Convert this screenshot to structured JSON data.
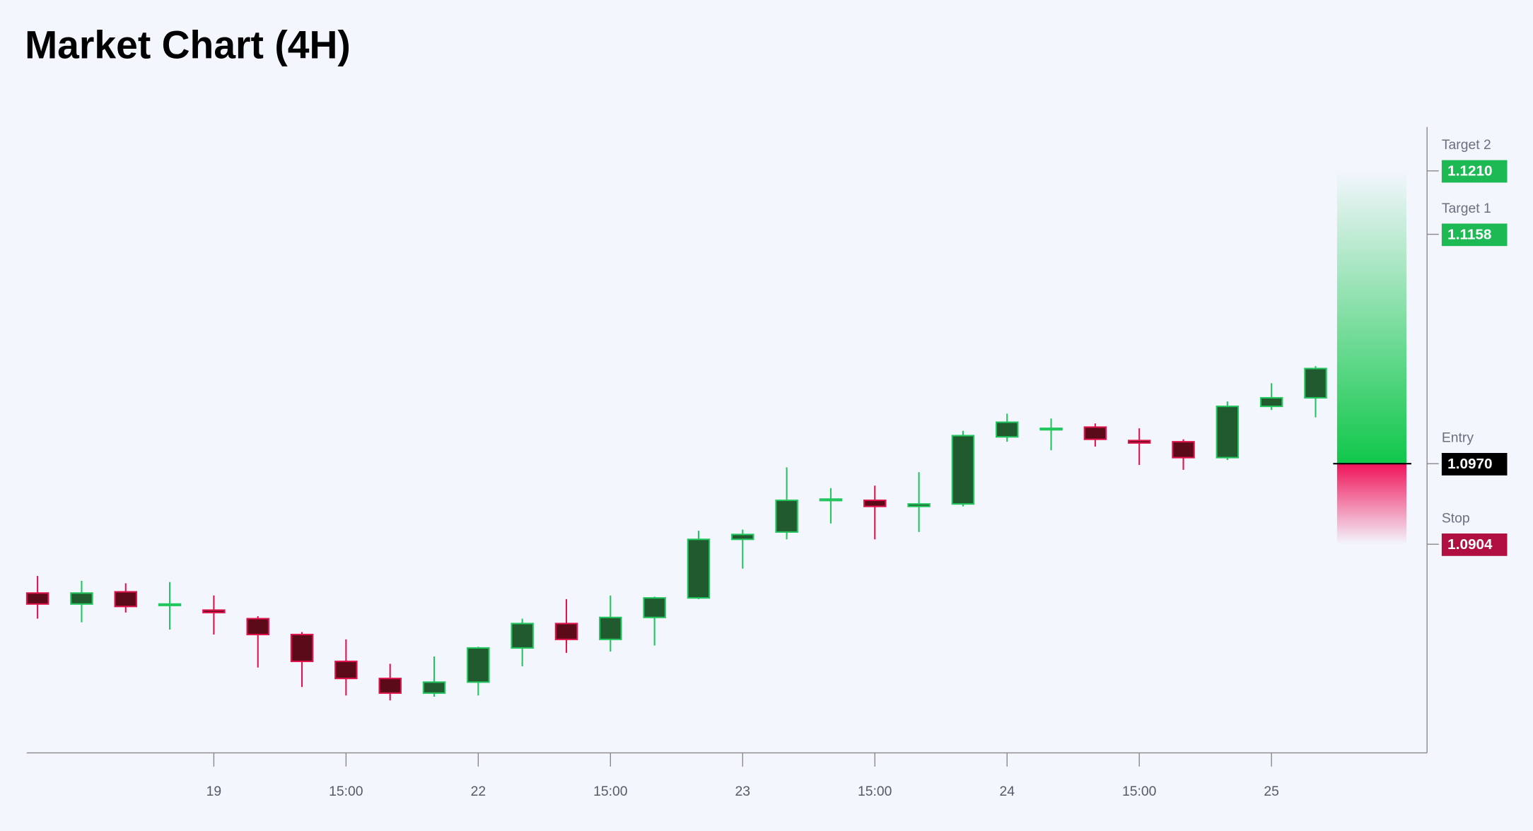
{
  "chart_data": {
    "type": "candlestick",
    "title": "Market Chart (4H)",
    "categories": [
      null,
      null,
      null,
      null,
      "19",
      null,
      null,
      "15:00",
      null,
      null,
      "22",
      null,
      null,
      "15:00",
      null,
      null,
      "23",
      null,
      null,
      "15:00",
      null,
      null,
      "24",
      null,
      null,
      "15:00",
      null,
      null,
      "25",
      null
    ],
    "open": [
      1.0864,
      1.0855,
      1.0865,
      1.0854,
      1.085,
      1.0843,
      1.083,
      1.0808,
      1.0794,
      1.0782,
      1.0791,
      1.0819,
      1.0839,
      1.0826,
      1.0844,
      1.086,
      1.0908,
      1.0914,
      1.094,
      1.094,
      1.0935,
      1.0937,
      1.0992,
      1.0998,
      1.1,
      1.0989,
      1.0988,
      1.0975,
      1.1017,
      1.1024
    ],
    "high": [
      1.0878,
      1.0874,
      1.0872,
      1.0873,
      1.0862,
      1.0845,
      1.0832,
      1.0826,
      1.0806,
      1.0812,
      1.082,
      1.0843,
      1.0859,
      1.0862,
      1.0861,
      1.0915,
      1.0916,
      1.0967,
      1.095,
      1.0952,
      1.0963,
      1.0997,
      1.1011,
      1.1007,
      1.1003,
      1.0999,
      1.099,
      1.1021,
      1.1036,
      1.105
    ],
    "low": [
      1.0843,
      1.084,
      1.0848,
      1.0834,
      1.083,
      1.0803,
      1.0787,
      1.078,
      1.0776,
      1.0779,
      1.078,
      1.0804,
      1.0815,
      1.0816,
      1.0821,
      1.0859,
      1.0884,
      1.0908,
      1.0921,
      1.0908,
      1.0914,
      1.0935,
      1.0988,
      1.0981,
      1.0984,
      1.0969,
      1.0965,
      1.0973,
      1.1014,
      1.1008
    ],
    "close": [
      1.0855,
      1.0864,
      1.0853,
      1.0855,
      1.0848,
      1.083,
      1.0808,
      1.0794,
      1.0782,
      1.0791,
      1.0819,
      1.0839,
      1.0826,
      1.0844,
      1.086,
      1.0908,
      1.0912,
      1.094,
      1.0941,
      1.0935,
      1.0937,
      1.0993,
      1.1004,
      1.0999,
      1.099,
      1.0987,
      1.0975,
      1.1017,
      1.1024,
      1.1048
    ],
    "up_color": "#22c55e",
    "up_fill": "#225a30",
    "down_color": "#e0144c",
    "down_fill": "#5a0a18",
    "ylim": [
      1.0733,
      1.1246
    ],
    "levels": [
      {
        "name": "Target 2",
        "value": 1.121,
        "label": "1.1210",
        "color": "#1db954"
      },
      {
        "name": "Target 1",
        "value": 1.1158,
        "label": "1.1158",
        "color": "#1db954"
      },
      {
        "name": "Entry",
        "value": 1.097,
        "label": "1.0970",
        "color": "#000000"
      },
      {
        "name": "Stop",
        "value": 1.0904,
        "label": "1.0904",
        "color": "#b0103f"
      }
    ]
  }
}
